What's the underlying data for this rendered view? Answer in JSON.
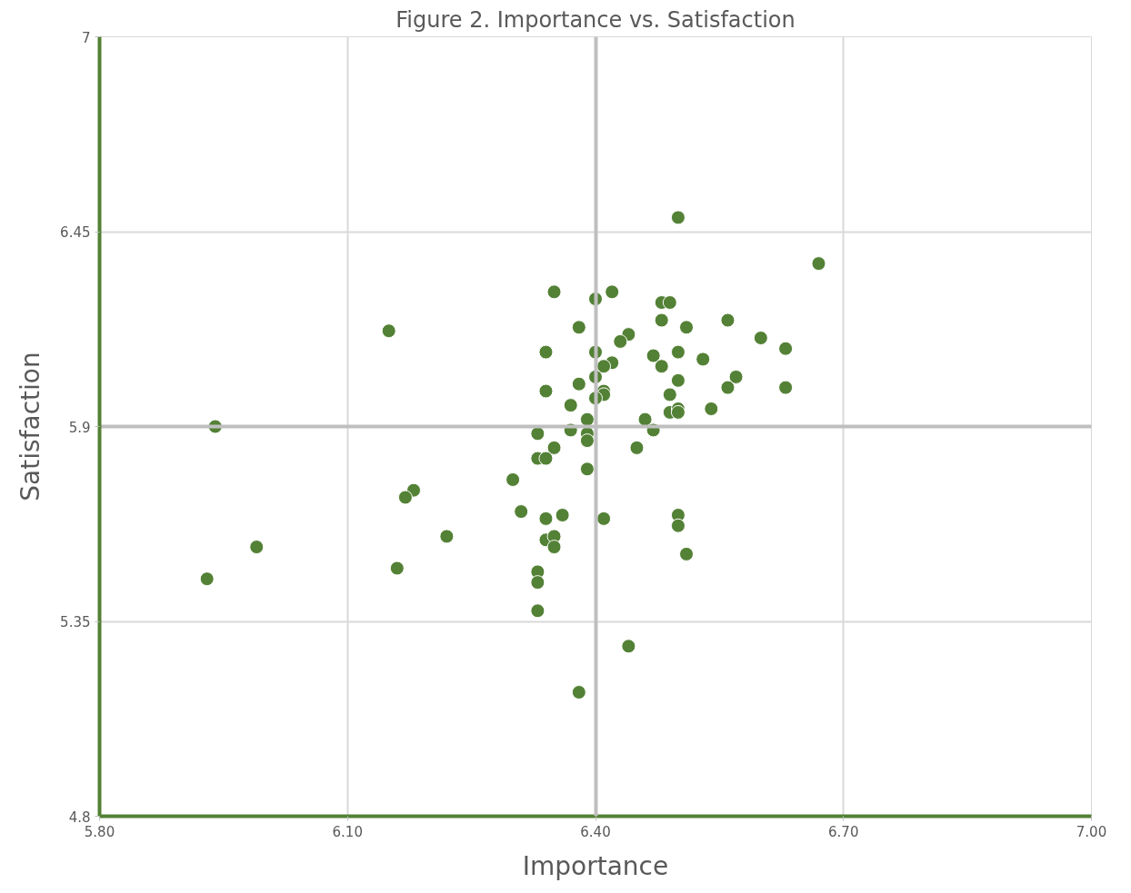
{
  "chart_data": {
    "type": "scatter",
    "title": "Figure 2. Importance vs. Satisfaction",
    "xlabel": "Importance",
    "ylabel": "Satisfaction",
    "xlim": [
      5.8,
      7.0
    ],
    "ylim": [
      4.8,
      7
    ],
    "xticks": [
      {
        "value": 5.8,
        "label": "5.80"
      },
      {
        "value": 6.1,
        "label": "6.10"
      },
      {
        "value": 6.4,
        "label": "6.40"
      },
      {
        "value": 6.7,
        "label": "6.70"
      },
      {
        "value": 7.0,
        "label": "7.00"
      }
    ],
    "yticks": [
      4.8,
      5.35,
      5.9,
      6.45,
      7
    ],
    "grid": true,
    "marker": "circle",
    "series": [
      {
        "color": "#538135",
        "x": [
          6.5,
          6.67,
          6.35,
          6.42,
          6.4,
          6.48,
          6.49,
          6.48,
          6.56,
          6.15,
          6.38,
          6.51,
          6.6,
          6.44,
          6.43,
          6.63,
          6.34,
          6.4,
          6.5,
          6.47,
          6.53,
          6.42,
          6.41,
          6.48,
          6.4,
          6.57,
          6.5,
          6.38,
          6.56,
          6.63,
          6.34,
          6.41,
          6.41,
          6.4,
          6.49,
          6.37,
          6.54,
          6.49,
          6.5,
          6.5,
          6.46,
          6.39,
          5.94,
          6.37,
          6.47,
          6.33,
          6.39,
          6.39,
          6.35,
          6.45,
          6.33,
          6.34,
          6.39,
          6.3,
          6.18,
          6.17,
          6.31,
          6.36,
          6.5,
          6.5,
          6.34,
          6.41,
          6.22,
          6.34,
          6.35,
          6.35,
          5.99,
          6.51,
          6.16,
          6.33,
          6.33,
          5.93,
          6.33,
          6.44,
          6.38
        ],
        "values": [
          6.49,
          6.36,
          6.28,
          6.28,
          6.26,
          6.25,
          6.25,
          6.2,
          6.2,
          6.17,
          6.18,
          6.18,
          6.15,
          6.16,
          6.14,
          6.12,
          6.11,
          6.11,
          6.11,
          6.1,
          6.09,
          6.08,
          6.07,
          6.07,
          6.04,
          6.04,
          6.03,
          6.02,
          6.01,
          6.01,
          6.0,
          6.0,
          5.99,
          5.98,
          5.99,
          5.96,
          5.95,
          5.94,
          5.95,
          5.94,
          5.92,
          5.92,
          5.9,
          5.89,
          5.89,
          5.88,
          5.88,
          5.86,
          5.84,
          5.84,
          5.81,
          5.81,
          5.78,
          5.75,
          5.72,
          5.7,
          5.66,
          5.65,
          5.65,
          5.62,
          5.64,
          5.64,
          5.59,
          5.58,
          5.59,
          5.56,
          5.56,
          5.54,
          5.5,
          5.49,
          5.46,
          5.47,
          5.38,
          5.28,
          5.15
        ]
      }
    ]
  }
}
